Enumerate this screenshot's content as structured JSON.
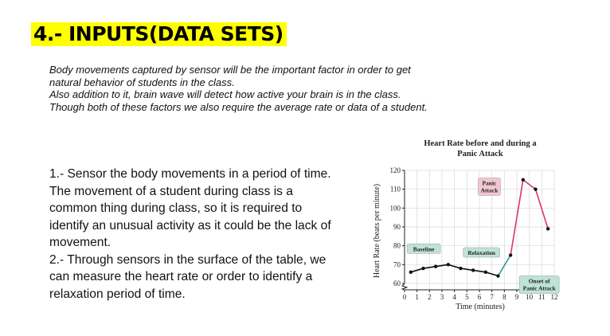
{
  "slide": {
    "title": "4.- INPUTS(DATA SETS)",
    "intro_lines": [
      "Body movements captured by sensor will be the important factor in order to get",
      "natural behavior of students in the class.",
      "Also addition to it, brain wave will detect how active your brain is in the class.",
      "Though both of these factors we also require the average rate or data of a student."
    ],
    "points": [
      "1.- Sensor the body movements in a period of time. The movement of a student during class is a common thing during class, so it is required to identify an unusual activity as it could be the lack of movement.",
      "2.- Through sensors in the surface of the table, we can measure the heart rate or order to identify a relaxation period of time."
    ]
  },
  "chart_data": {
    "type": "line",
    "title_lines": [
      "Heart Rate before and during a",
      "Panic Attack"
    ],
    "xlabel": "Time (minutes)",
    "ylabel": "Heart Rate (beats per minute)",
    "xlim": [
      0,
      12
    ],
    "ylim": [
      60,
      120
    ],
    "xticks": [
      0,
      1,
      2,
      3,
      4,
      5,
      6,
      7,
      8,
      9,
      10,
      11,
      12
    ],
    "yticks": [
      60,
      70,
      80,
      90,
      100,
      110,
      120
    ],
    "grid": true,
    "x": [
      0.5,
      1.5,
      2.5,
      3.5,
      4.5,
      5.5,
      6.5,
      7.5,
      8.5,
      9.5,
      10.5,
      11.5
    ],
    "y": [
      66,
      68,
      69,
      70,
      68,
      67,
      66,
      64,
      75,
      115,
      110,
      89
    ],
    "colors": {
      "line": "#111111",
      "onset_line": "#2a9d8f",
      "panic_line": "#d63a5e",
      "label_bg": "#bfe3d6",
      "panic_bg": "#f3c6d0",
      "grid": "#d9d9d9"
    },
    "annotations": [
      {
        "lines": [
          "Baseline"
        ],
        "style": "green"
      },
      {
        "lines": [
          "Relaxation"
        ],
        "style": "green"
      },
      {
        "lines": [
          "Panic",
          "Attack"
        ],
        "style": "pink"
      },
      {
        "lines": [
          "Onset of",
          "Panic Attack"
        ],
        "style": "green"
      }
    ]
  }
}
